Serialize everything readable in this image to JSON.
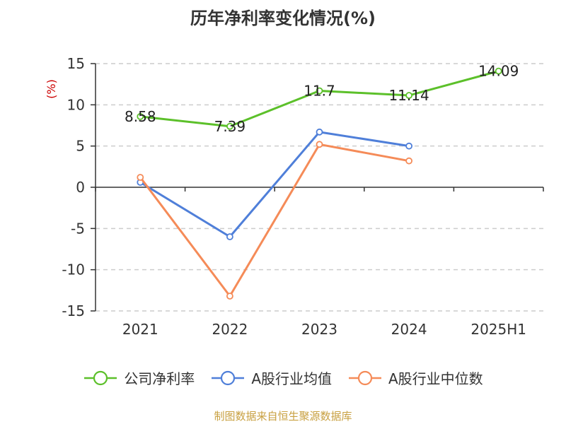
{
  "title": "历年净利率变化情况(%)",
  "source": "制图数据来自恒生聚源数据库",
  "chart_data": {
    "type": "line",
    "title": "历年净利率变化情况(%)",
    "ylabel": "(%)",
    "xlabel": "",
    "categories": [
      "2021",
      "2022",
      "2023",
      "2024",
      "2025H1"
    ],
    "ylim": [
      -15,
      15
    ],
    "yticks": [
      -15,
      -10,
      -5,
      0,
      5,
      10,
      15
    ],
    "grid": true,
    "legend_position": "bottom",
    "series": [
      {
        "name": "公司净利率",
        "values": [
          8.58,
          7.39,
          11.7,
          11.14,
          14.09
        ],
        "labels": [
          "8.58",
          "7.39",
          "11.7",
          "11.14",
          "14.09"
        ],
        "color": "#5cc02a"
      },
      {
        "name": "A股行业均值",
        "values": [
          0.6,
          -6.0,
          6.7,
          5.0,
          null
        ],
        "color": "#4f7fd9"
      },
      {
        "name": "A股行业中位数",
        "values": [
          1.2,
          -13.2,
          5.2,
          3.2,
          null
        ],
        "color": "#f58b58"
      }
    ]
  }
}
